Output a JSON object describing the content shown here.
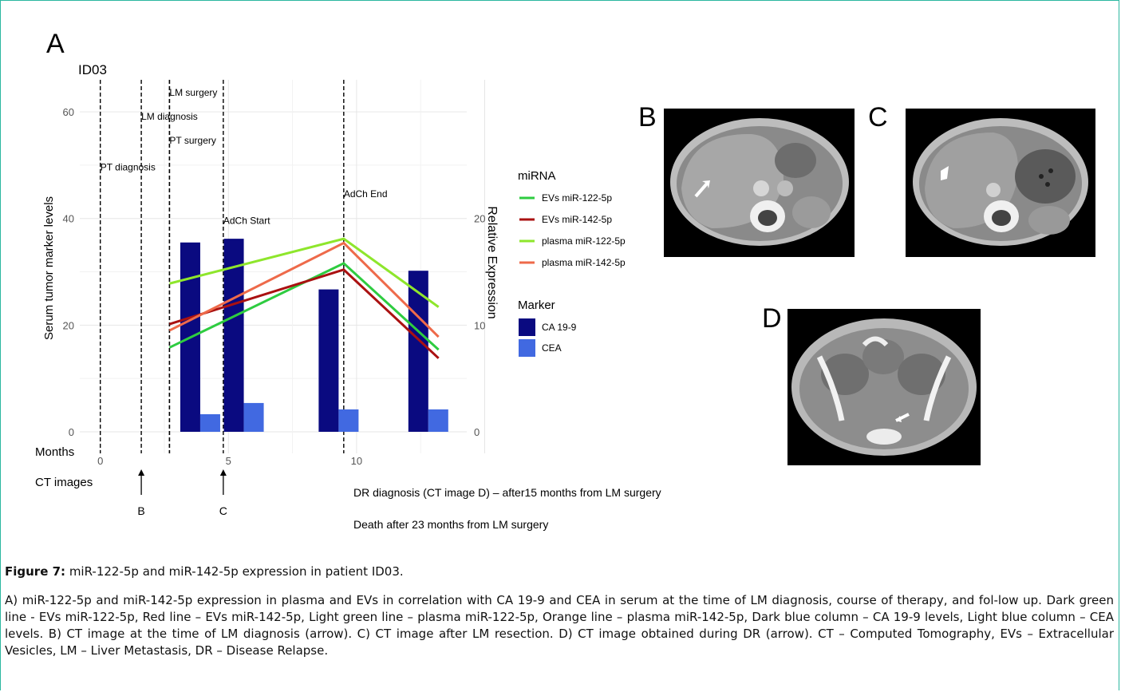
{
  "figure": {
    "panel_a_letter": "A",
    "panel_b_letter": "B",
    "panel_c_letter": "C",
    "panel_d_letter": "D",
    "caption_title_bold": "Figure 7:",
    "caption_title_rest": " miR-122-5p and miR-142-5p expression in patient ID03.",
    "caption_body": "A) miR-122-5p and miR-142-5p expression in plasma and EVs in correlation with CA 19-9 and CEA in serum at the time of LM diagnosis, course of therapy, and fol-low up. Dark green line - EVs miR-122-5p, Red line – EVs miR-142-5p, Light green line – plasma miR-122-5p, Orange line – plasma miR-142-5p, Dark blue column – CA 19-9 levels, Light blue column – CEA levels. B) CT image at the time of LM diagnosis (arrow). C) CT image after LM resection. D) CT image obtained during DR (arrow). CT – Computed Tomography, EVs – Extracellular Vesicles, LM – Liver Metastasis, DR – Disease Relapse."
  },
  "chart_data": {
    "type": "bar",
    "title": "ID03",
    "ylabel": "Serum tumor marker levels",
    "y2label": "Relative Expression",
    "xlabel": "Months",
    "ylim": [
      0,
      66
    ],
    "y2lim": [
      0,
      33
    ],
    "xlim": [
      -0.8,
      14.3
    ],
    "yticks": [
      0,
      20,
      40,
      60
    ],
    "y2ticks": [
      0,
      10,
      20
    ],
    "xticks": [
      0,
      5,
      10
    ],
    "grid": true,
    "bars": {
      "x": [
        3.9,
        5.6,
        9.3,
        12.8
      ],
      "series": [
        {
          "name": "CA 19-9",
          "color": "#0a0a80",
          "values": [
            35.5,
            36.2,
            26.7,
            30.2
          ]
        },
        {
          "name": "CEA",
          "color": "#4169e1",
          "values": [
            3.3,
            5.4,
            4.2,
            4.2
          ]
        }
      ]
    },
    "lines": {
      "x": [
        2.7,
        9.5,
        13.2
      ],
      "series": [
        {
          "name": "EVs miR-122-5p",
          "color": "#2ecc40",
          "values": [
            7.9,
            15.8,
            7.7
          ]
        },
        {
          "name": "EVs miR-142-5p",
          "color": "#aa1111",
          "values": [
            10.1,
            15.2,
            6.9
          ]
        },
        {
          "name": "plasma miR-122-5p",
          "color": "#8ee62c",
          "values": [
            13.9,
            18.1,
            11.7
          ]
        },
        {
          "name": "plasma miR-142-5p",
          "color": "#ee6a4a",
          "values": [
            9.5,
            17.7,
            8.9
          ]
        }
      ]
    },
    "events": [
      {
        "x": 0,
        "label": "PT diagnosis",
        "label_y": 49
      },
      {
        "x": 1.6,
        "label": "LM diagnosis",
        "label_y": 58.5
      },
      {
        "x": 2.7,
        "label": "PT surgery",
        "label_y": 54
      },
      {
        "x": 2.7,
        "label": "LM surgery",
        "label_y": 63
      },
      {
        "x": 4.8,
        "label": "AdCh Start",
        "label_y": 39
      },
      {
        "x": 9.5,
        "label": "AdCh End",
        "label_y": 44
      }
    ],
    "legend": {
      "position": "right",
      "mirna_title": "miRNA",
      "marker_title": "Marker"
    },
    "ct_images": {
      "label": "CT  images",
      "arrows": [
        {
          "x": 1.6,
          "label": "B"
        },
        {
          "x": 4.8,
          "label": "C"
        }
      ]
    },
    "annotations": [
      "DR diagnosis (CT image D) – after15 months from LM surgery",
      "Death after 23 months from LM surgery"
    ]
  }
}
